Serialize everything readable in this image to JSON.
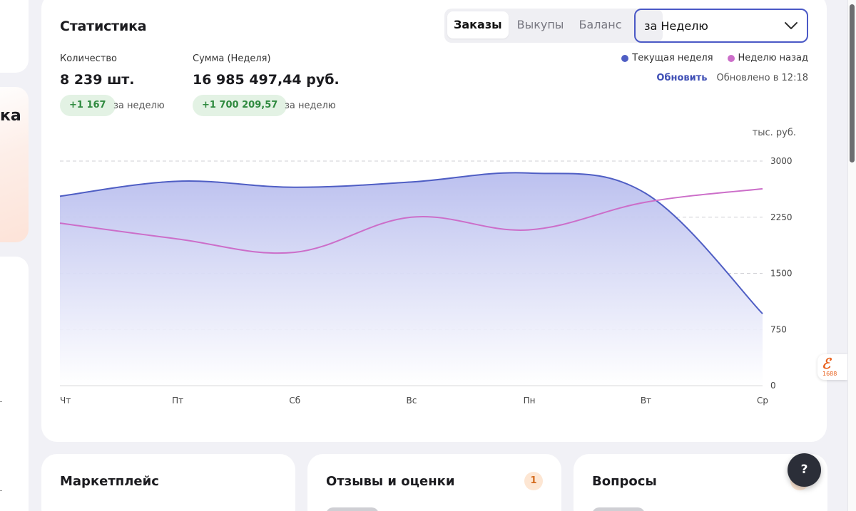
{
  "left_panel": {
    "title_fragment": "ка"
  },
  "stats": {
    "title": "Статистика",
    "tabs": [
      {
        "label": "Заказы",
        "active": true
      },
      {
        "label": "Выкупы",
        "active": false
      },
      {
        "label": "Баланс",
        "active": false
      }
    ],
    "period": {
      "value": "за Неделю",
      "icon": "chevron-down-icon"
    },
    "quantity": {
      "label": "Количество",
      "value": "8 239 шт.",
      "delta": "+1 167",
      "delta_note": "за неделю"
    },
    "sum": {
      "label": "Сумма (Неделя)",
      "value": "16 985 497,44 руб.",
      "delta": "+1 700 209,57",
      "delta_note": "за неделю"
    },
    "legend": {
      "current": "Текущая неделя",
      "previous": "Неделю назад"
    },
    "refresh_label": "Обновить",
    "updated_label": "Обновлено в 12:18",
    "colors": {
      "current": "#4f5ec4",
      "previous": "#cc6ec9",
      "delta_bg": "#e3f2e4",
      "delta_text": "#2f8a3f",
      "accent": "#4b59c6"
    }
  },
  "chart_data": {
    "type": "area",
    "unit_label": "тыс. руб.",
    "categories": [
      "Чт",
      "Пт",
      "Сб",
      "Вс",
      "Пн",
      "Вт",
      "Ср"
    ],
    "y_ticks": [
      0,
      750,
      1500,
      2250,
      3000
    ],
    "ylim": [
      0,
      3000
    ],
    "grid": true,
    "legend_position": "top-right",
    "series": [
      {
        "name": "Текущая неделя",
        "values": [
          2530,
          2730,
          2650,
          2720,
          2840,
          2570,
          960
        ],
        "fill": true
      },
      {
        "name": "Неделю назад",
        "values": [
          2170,
          1960,
          1780,
          2250,
          2080,
          2450,
          2630
        ],
        "fill": false
      }
    ]
  },
  "bottom": {
    "marketplace": {
      "title": "Маркетплейс"
    },
    "reviews": {
      "title": "Отзывы и оценки",
      "count": "1"
    },
    "questions": {
      "title": "Вопросы"
    }
  },
  "help": {
    "label": "?"
  },
  "extension": {
    "logo": "ℰ",
    "number": "1688"
  }
}
